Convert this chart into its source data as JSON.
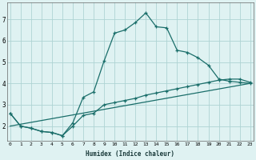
{
  "xlabel": "Humidex (Indice chaleur)",
  "background_color": "#dff2f2",
  "grid_color": "#aed4d4",
  "line_color": "#1a6e6a",
  "line1_x": [
    0,
    1,
    2,
    3,
    4,
    5,
    6,
    7,
    8,
    9,
    10,
    11,
    12,
    13,
    14,
    15,
    16,
    17,
    18,
    19,
    20,
    21,
    22,
    23
  ],
  "line1_y": [
    2.6,
    2.0,
    1.9,
    1.75,
    1.7,
    1.55,
    2.15,
    3.35,
    3.6,
    5.05,
    6.35,
    6.5,
    6.85,
    7.3,
    6.65,
    6.6,
    5.55,
    5.45,
    5.2,
    4.85,
    4.2,
    4.1,
    4.05,
    4.0
  ],
  "line2_x": [
    0,
    1,
    2,
    3,
    4,
    5,
    6,
    7,
    8,
    9,
    10,
    11,
    12,
    13,
    14,
    15,
    16,
    17,
    18,
    19,
    20,
    21,
    22,
    23
  ],
  "line2_y": [
    2.6,
    2.0,
    1.9,
    1.75,
    1.7,
    1.55,
    2.0,
    2.5,
    2.6,
    3.0,
    3.1,
    3.2,
    3.3,
    3.45,
    3.55,
    3.65,
    3.75,
    3.85,
    3.95,
    4.05,
    4.15,
    4.2,
    4.2,
    4.05
  ],
  "line3_x": [
    0,
    23
  ],
  "line3_y": [
    2.0,
    4.0
  ],
  "ylim": [
    1.3,
    7.8
  ],
  "xlim": [
    -0.3,
    23.3
  ],
  "yticks": [
    2,
    3,
    4,
    5,
    6,
    7
  ],
  "xticks": [
    0,
    1,
    2,
    3,
    4,
    5,
    6,
    7,
    8,
    9,
    10,
    11,
    12,
    13,
    14,
    15,
    16,
    17,
    18,
    19,
    20,
    21,
    22,
    23
  ]
}
